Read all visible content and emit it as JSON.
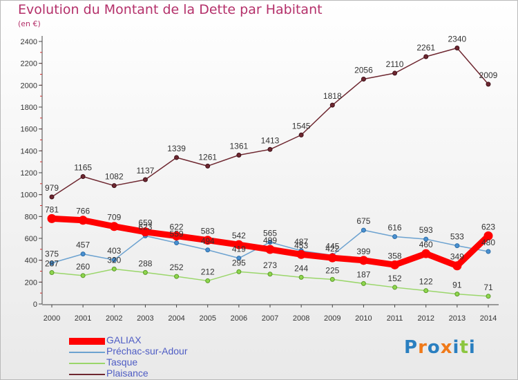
{
  "title": "Evolution du Montant de la Dette par Habitant",
  "unit": "(en €)",
  "logo": {
    "letters": [
      {
        "ch": "P",
        "color": "#2a7fc0"
      },
      {
        "ch": "r",
        "color": "#f07a1a"
      },
      {
        "ch": "o",
        "color": "#2a7fc0"
      },
      {
        "ch": "x",
        "color": "#f07a1a"
      },
      {
        "ch": "i",
        "color": "#2a7fc0"
      },
      {
        "ch": "t",
        "color": "#8cc63f"
      },
      {
        "ch": "i",
        "color": "#2a7fc0"
      }
    ]
  },
  "chart_data": {
    "type": "line",
    "title": "Evolution du Montant de la Dette par Habitant",
    "ylabel": "(en €)",
    "xlabel": "",
    "x": [
      "2000",
      "2001",
      "2002",
      "2003",
      "2004",
      "2005",
      "2006",
      "2007",
      "2008",
      "2009",
      "2010",
      "2011",
      "2012",
      "2013",
      "2014"
    ],
    "ylim": [
      0,
      2400
    ],
    "yticks": [
      0,
      200,
      400,
      600,
      800,
      1000,
      1200,
      1400,
      1600,
      1800,
      2000,
      2200,
      2400
    ],
    "grid": false,
    "legend_position": "bottom-left",
    "series": [
      {
        "name": "GALIAX",
        "color": "#ff0000",
        "values": [
          781,
          766,
          709,
          659,
          622,
          583,
          542,
          499,
          453,
          422,
          399,
          358,
          460,
          349,
          623
        ]
      },
      {
        "name": "Préchac-sur-Adour",
        "color": "#6ca2d0",
        "values": [
          375,
          457,
          403,
          623,
          559,
          494,
          419,
          565,
          487,
          445,
          675,
          616,
          593,
          533,
          480
        ]
      },
      {
        "name": "Tasque",
        "color": "#9ad66a",
        "values": [
          287,
          260,
          320,
          288,
          252,
          212,
          295,
          273,
          244,
          225,
          187,
          152,
          122,
          91,
          71
        ]
      },
      {
        "name": "Plaisance",
        "color": "#6e2730",
        "values": [
          979,
          1165,
          1082,
          1137,
          1339,
          1261,
          1361,
          1413,
          1545,
          1818,
          2056,
          2110,
          2261,
          2340,
          2009
        ]
      }
    ]
  }
}
